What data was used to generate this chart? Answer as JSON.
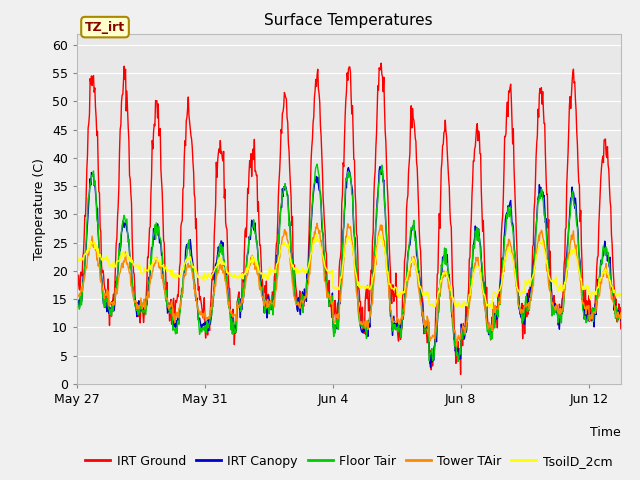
{
  "title": "Surface Temperatures",
  "xlabel": "Time",
  "ylabel": "Temperature (C)",
  "ylim": [
    0,
    62
  ],
  "yticks": [
    0,
    5,
    10,
    15,
    20,
    25,
    30,
    35,
    40,
    45,
    50,
    55,
    60
  ],
  "fig_bg": "#f0f0f0",
  "plot_bg": "#e8e8e8",
  "series": [
    {
      "label": "IRT Ground",
      "color": "#ff0000"
    },
    {
      "label": "IRT Canopy",
      "color": "#0000cc"
    },
    {
      "label": "Floor Tair",
      "color": "#00cc00"
    },
    {
      "label": "Tower TAir",
      "color": "#ff8800"
    },
    {
      "label": "TsoilD_2cm",
      "color": "#ffff00"
    }
  ],
  "tz_irt_box_color": "#ffffcc",
  "tz_irt_text_color": "#880000",
  "tz_irt_border": "#aa8800",
  "n_days": 17,
  "x_tick_labels": [
    "May 27",
    "May 31",
    "Jun 4",
    "Jun 8",
    "Jun 12"
  ],
  "x_tick_positions": [
    0,
    4,
    8,
    12,
    16
  ],
  "seed": 42,
  "irt_ground_peaks": [
    55,
    54,
    49,
    48,
    42,
    42,
    50,
    54,
    56,
    57,
    48,
    45,
    45,
    52,
    52,
    55,
    43
  ],
  "irt_ground_mins": [
    17,
    13,
    13,
    14,
    10,
    15,
    15,
    15,
    12,
    15,
    10,
    5,
    9,
    12,
    14,
    13,
    12
  ],
  "irt_canopy_peaks": [
    37,
    28,
    28,
    25,
    25,
    28,
    35,
    37,
    38,
    38,
    28,
    23,
    27,
    32,
    35,
    34,
    24
  ],
  "irt_canopy_mins": [
    14,
    13,
    13,
    10,
    10,
    14,
    14,
    15,
    10,
    10,
    10,
    5,
    9,
    12,
    14,
    12,
    12
  ],
  "floor_peaks": [
    37,
    29,
    28,
    24,
    24,
    28,
    35,
    38,
    38,
    38,
    28,
    23,
    27,
    31,
    34,
    33,
    24
  ],
  "floor_mins": [
    14,
    13,
    13,
    10,
    10,
    14,
    14,
    15,
    10,
    10,
    10,
    5,
    9,
    12,
    13,
    12,
    12
  ],
  "tower_peaks": [
    25,
    22,
    22,
    21,
    21,
    22,
    27,
    28,
    28,
    28,
    22,
    20,
    22,
    25,
    27,
    26,
    20
  ],
  "tower_mins": [
    16,
    14,
    14,
    12,
    12,
    14,
    14,
    15,
    11,
    11,
    11,
    8,
    10,
    13,
    14,
    13,
    12
  ],
  "tsoil_peaks": [
    25,
    23,
    22,
    22,
    22,
    22,
    25,
    26,
    26,
    26,
    22,
    20,
    21,
    24,
    25,
    24,
    20
  ],
  "tsoil_mins": [
    22,
    21,
    20,
    19,
    19,
    19,
    20,
    20,
    17,
    17,
    16,
    14,
    14,
    16,
    18,
    17,
    16
  ]
}
